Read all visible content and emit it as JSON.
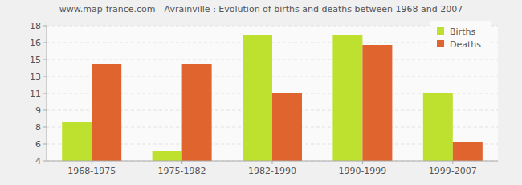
{
  "chart_data": {
    "type": "bar",
    "title": "www.map-france.com - Avrainville : Evolution of births and deaths between 1968 and 2007",
    "categories": [
      "1968-1975",
      "1975-1982",
      "1982-1990",
      "1990-1999",
      "1999-2007"
    ],
    "series": [
      {
        "name": "Births",
        "color": "#bde12e",
        "values": [
          8,
          5,
          17,
          17,
          11
        ]
      },
      {
        "name": "Deaths",
        "color": "#e0642e",
        "values": [
          14,
          14,
          11,
          16,
          6
        ]
      }
    ],
    "ylim": [
      4,
      18
    ],
    "yticks": [
      4,
      {
        "value": 5.75,
        "label": "6"
      },
      {
        "value": 7.5,
        "label": "8"
      },
      {
        "value": 9.25,
        "label": "9"
      },
      11,
      {
        "value": 12.75,
        "label": "13"
      },
      {
        "value": 14.5,
        "label": "15"
      },
      {
        "value": 16.25,
        "label": "16"
      },
      18
    ],
    "grid": true,
    "legend": "top-right"
  }
}
